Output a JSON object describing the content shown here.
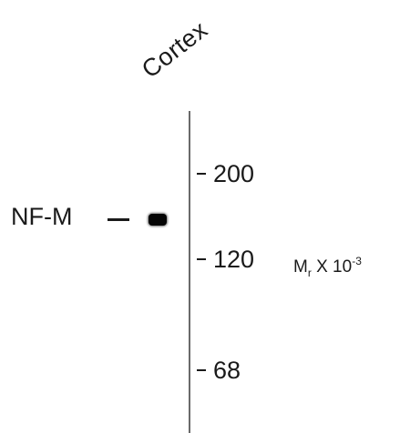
{
  "lane": {
    "label": "Cortex"
  },
  "protein": {
    "label": "NF-M"
  },
  "markers": [
    {
      "label": "200"
    },
    {
      "label": "120"
    },
    {
      "label": "68"
    }
  ],
  "units": {
    "base": "M",
    "base_sub": "r",
    "times": " X 10",
    "exponent": "-3"
  }
}
